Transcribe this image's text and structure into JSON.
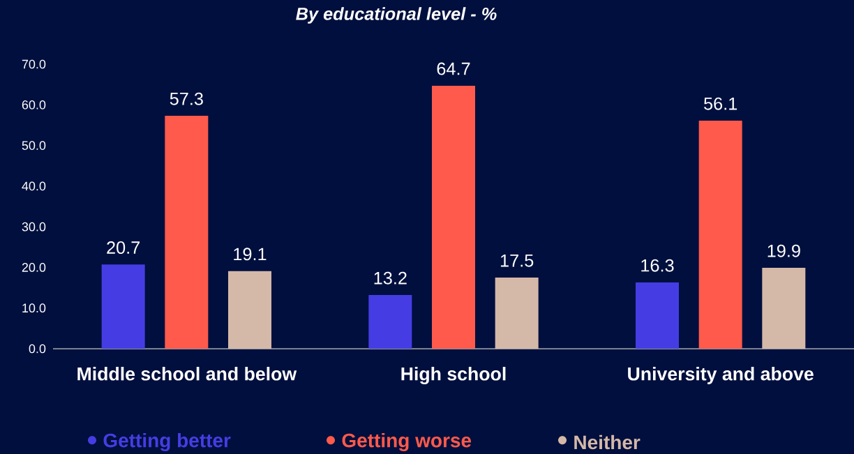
{
  "chart_data": {
    "type": "bar",
    "title": "By educational level - %",
    "categories": [
      "Middle school and below",
      "High school",
      "University  and above"
    ],
    "series": [
      {
        "name": "Getting better",
        "color": "#453de3",
        "values": [
          20.7,
          13.2,
          16.3
        ]
      },
      {
        "name": "Getting worse",
        "color": "#ff5a4b",
        "values": [
          57.3,
          64.7,
          56.1
        ]
      },
      {
        "name": "Neither",
        "color": "#d4b8a8",
        "values": [
          19.1,
          17.5,
          19.9
        ]
      }
    ],
    "ylim": [
      0,
      70
    ],
    "yticks": [
      {
        "value": 0,
        "label": "0.0"
      },
      {
        "value": 10,
        "label": "10.0"
      },
      {
        "value": 20,
        "label": "20.0"
      },
      {
        "value": 30,
        "label": "30.0"
      },
      {
        "value": 40,
        "label": "40.0"
      },
      {
        "value": 50,
        "label": "50.0"
      },
      {
        "value": 60,
        "label": "60.0"
      },
      {
        "value": 70,
        "label": "70.0"
      }
    ],
    "data_labels": true,
    "legend": "bottom"
  }
}
